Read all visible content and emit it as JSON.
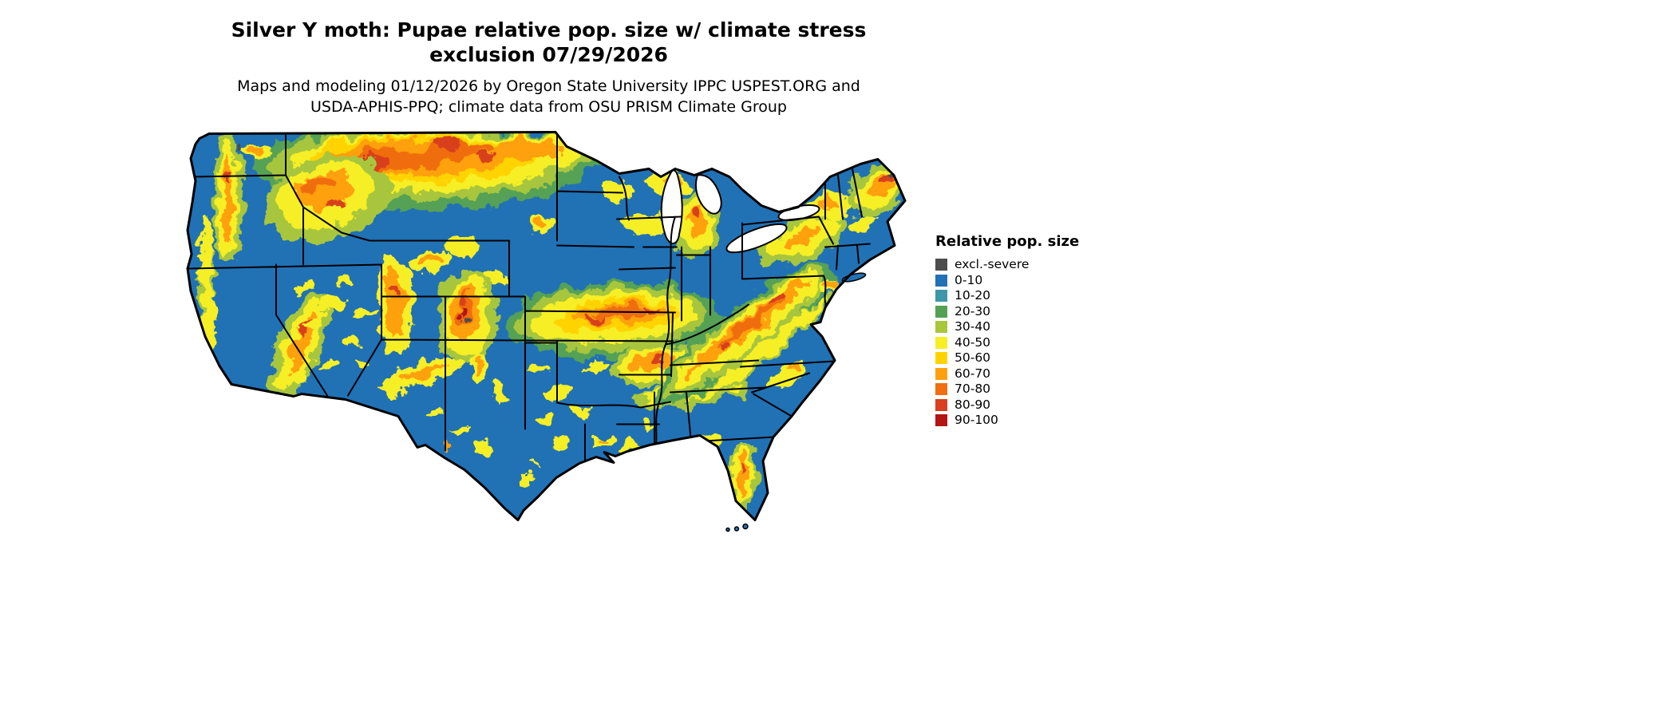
{
  "title": {
    "line1": "Silver Y moth: Pupae relative pop. size w/ climate stress",
    "line2": "exclusion 07/29/2026"
  },
  "subtitle": {
    "line1": "Maps and modeling 01/12/2026 by Oregon State University IPPC USPEST.ORG and",
    "line2": "USDA-APHIS-PPQ; climate data from OSU PRISM Climate Group"
  },
  "map": {
    "name": "continental-us-raster-map",
    "water_background": "#ffffff",
    "base_fill": "#2171b5",
    "border_color": "#000000"
  },
  "legend": {
    "title": "Relative pop. size",
    "items": [
      {
        "label": "excl.-severe",
        "color": "#4d4d4d"
      },
      {
        "label": "0-10",
        "color": "#2171b5"
      },
      {
        "label": "10-20",
        "color": "#3e97a8"
      },
      {
        "label": "20-30",
        "color": "#55a154"
      },
      {
        "label": "30-40",
        "color": "#a8c63c"
      },
      {
        "label": "40-50",
        "color": "#f6ef26"
      },
      {
        "label": "50-60",
        "color": "#ffd300"
      },
      {
        "label": "60-70",
        "color": "#ffa011"
      },
      {
        "label": "70-80",
        "color": "#f06d10"
      },
      {
        "label": "80-90",
        "color": "#d8401f"
      },
      {
        "label": "90-100",
        "color": "#b31414"
      }
    ]
  }
}
